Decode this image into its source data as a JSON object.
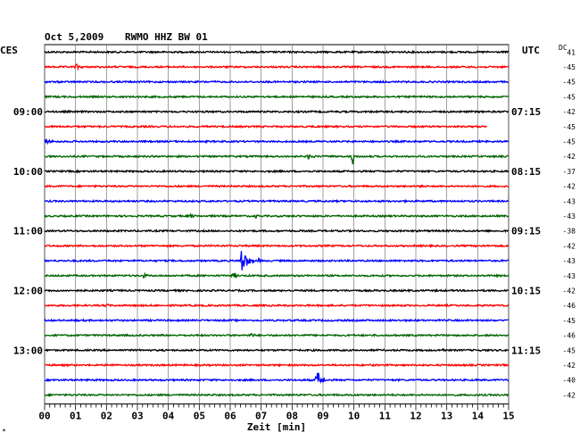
{
  "header": {
    "date": "Oct 5,2009",
    "station": "RWMO HHZ BW 01",
    "left_zone": "CES",
    "right_zone": "UTC",
    "dc_label": "DC"
  },
  "footer": {
    "axis_title": "Zeit [min]",
    "corner_mark": "*"
  },
  "colors": {
    "trace_cycle": [
      "#000000",
      "#ff0000",
      "#0000ff",
      "#006400"
    ],
    "grid": "#777777"
  },
  "chart_data": {
    "type": "line",
    "title": "Oct 5,2009  RWMO HHZ BW 01",
    "xlabel": "Zeit [min]",
    "ylabel": "",
    "xlim": [
      0,
      15
    ],
    "x_ticks": [
      "00",
      "01",
      "02",
      "03",
      "04",
      "05",
      "06",
      "07",
      "08",
      "09",
      "10",
      "11",
      "12",
      "13",
      "14",
      "15"
    ],
    "grid": true,
    "left_time_labels": [
      {
        "row": 4,
        "label": "09:00"
      },
      {
        "row": 8,
        "label": "10:00"
      },
      {
        "row": 12,
        "label": "11:00"
      },
      {
        "row": 16,
        "label": "12:00"
      },
      {
        "row": 20,
        "label": "13:00"
      }
    ],
    "right_time_labels": [
      {
        "row": 4,
        "label": "07:15"
      },
      {
        "row": 8,
        "label": "08:15"
      },
      {
        "row": 12,
        "label": "09:15"
      },
      {
        "row": 16,
        "label": "10:15"
      },
      {
        "row": 20,
        "label": "11:15"
      }
    ],
    "dc_offsets": [
      "41",
      "-45",
      "-45",
      "-45",
      "-42",
      "-45",
      "-45",
      "-42",
      "-37",
      "-42",
      "-43",
      "-43",
      "-38",
      "-42",
      "-43",
      "-43",
      "-42",
      "-46",
      "-45",
      "-46",
      "-45",
      "-42",
      "-40",
      "-42"
    ],
    "traces": [
      {
        "row": 0,
        "events": []
      },
      {
        "row": 1,
        "events": [
          {
            "t": 1.0,
            "amp": 4,
            "dur": 0.5
          }
        ]
      },
      {
        "row": 2,
        "events": []
      },
      {
        "row": 3,
        "events": []
      },
      {
        "row": 4,
        "events": []
      },
      {
        "row": 5,
        "events": [],
        "end": 14.3
      },
      {
        "row": 6,
        "events": [
          {
            "t": 0.0,
            "amp": 3,
            "dur": 0.8
          }
        ]
      },
      {
        "row": 7,
        "events": [
          {
            "t": 8.5,
            "amp": 4,
            "dur": 0.6
          },
          {
            "t": 9.95,
            "amp": 14,
            "dur": 0.12
          }
        ]
      },
      {
        "row": 8,
        "events": []
      },
      {
        "row": 9,
        "events": [
          {
            "t": 12.1,
            "amp": 3,
            "dur": 0.3
          }
        ]
      },
      {
        "row": 10,
        "events": []
      },
      {
        "row": 11,
        "events": [
          {
            "t": 4.7,
            "amp": 3,
            "dur": 0.5
          },
          {
            "t": 6.8,
            "amp": 3,
            "dur": 0.4
          }
        ]
      },
      {
        "row": 12,
        "events": []
      },
      {
        "row": 13,
        "events": []
      },
      {
        "row": 14,
        "events": [
          {
            "t": 6.35,
            "amp": 18,
            "dur": 0.5
          },
          {
            "t": 6.9,
            "amp": 4,
            "dur": 0.3
          },
          {
            "t": 12.9,
            "amp": 2,
            "dur": 0.3
          }
        ]
      },
      {
        "row": 15,
        "events": [
          {
            "t": 3.2,
            "amp": 3,
            "dur": 0.4
          },
          {
            "t": 6.1,
            "amp": 6,
            "dur": 0.3
          }
        ]
      },
      {
        "row": 16,
        "events": []
      },
      {
        "row": 17,
        "events": [
          {
            "t": 1.95,
            "amp": 3,
            "dur": 0.4
          }
        ]
      },
      {
        "row": 18,
        "events": []
      },
      {
        "row": 19,
        "events": [
          {
            "t": 6.65,
            "amp": 4,
            "dur": 0.4
          }
        ]
      },
      {
        "row": 20,
        "events": [
          {
            "t": 12.85,
            "amp": 3,
            "dur": 0.3
          }
        ]
      },
      {
        "row": 21,
        "events": [
          {
            "t": 2.1,
            "amp": 3,
            "dur": 0.4
          }
        ]
      },
      {
        "row": 22,
        "events": [
          {
            "t": 8.8,
            "amp": 14,
            "dur": 0.35
          }
        ]
      },
      {
        "row": 23,
        "events": []
      }
    ]
  }
}
